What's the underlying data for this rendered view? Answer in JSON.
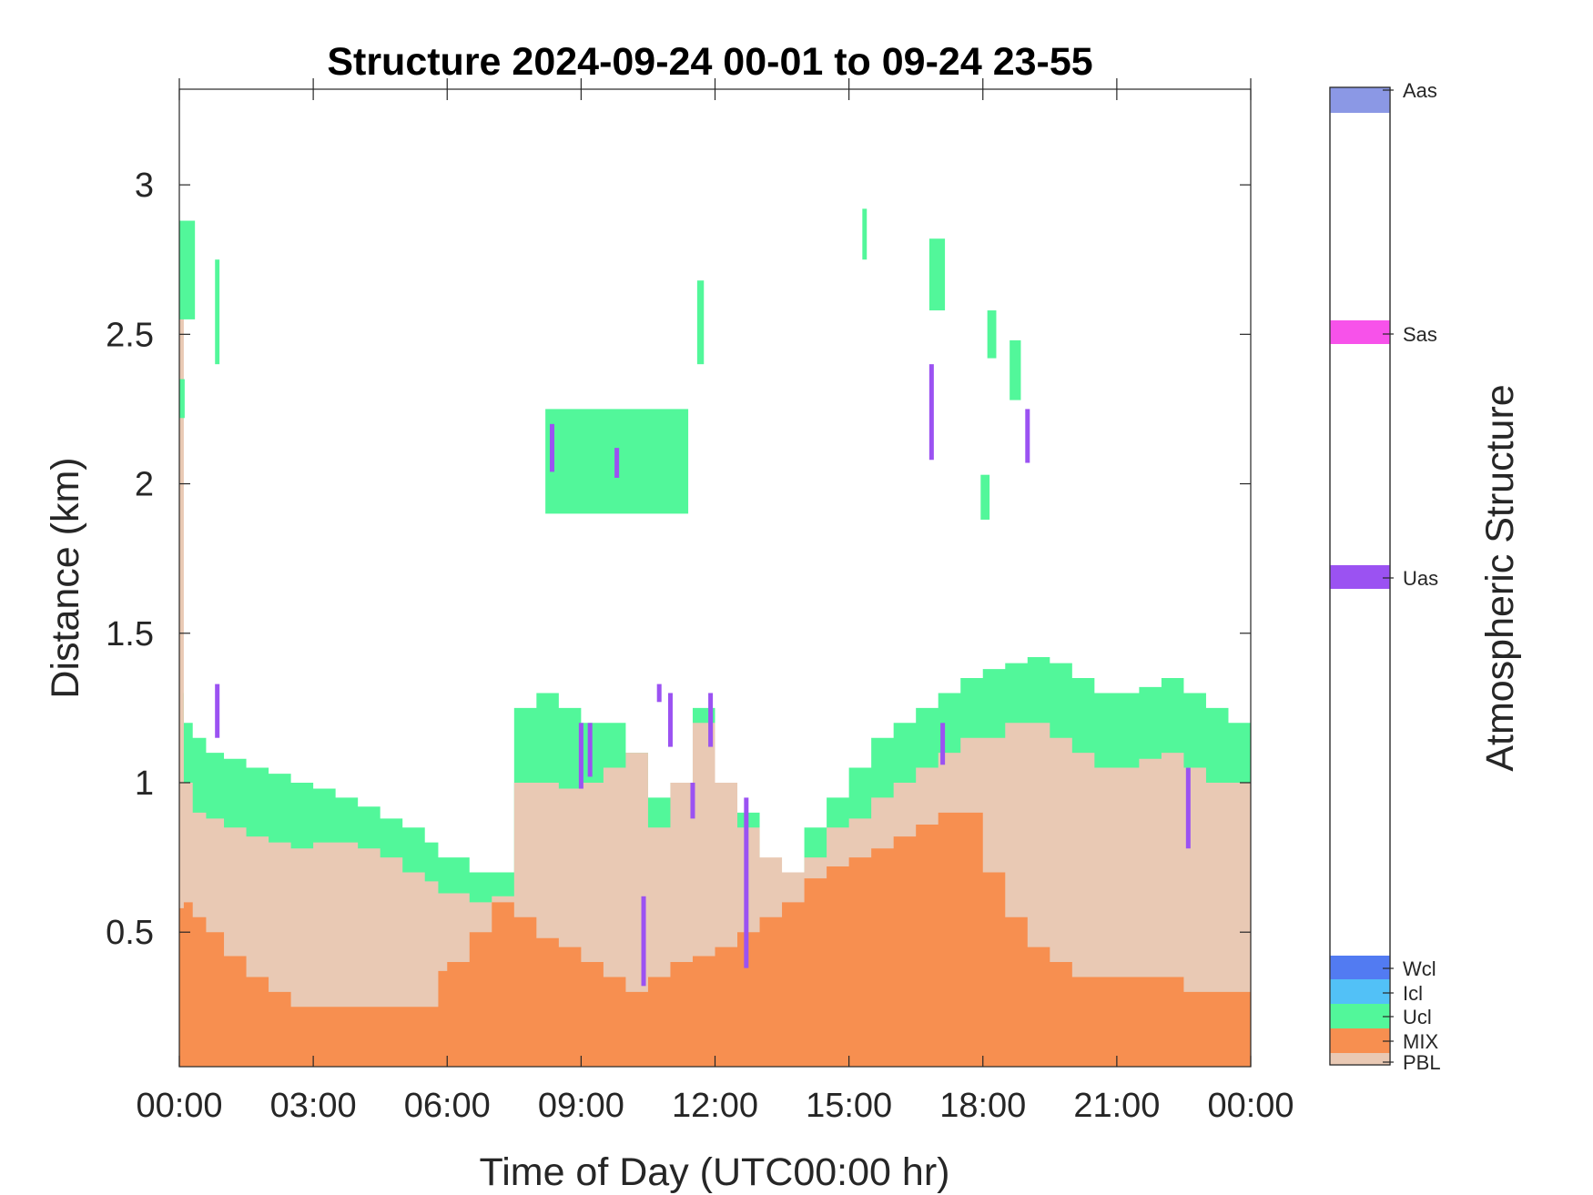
{
  "chart_data": {
    "type": "heatmap",
    "title": "Structure 2024-09-24 00-01 to 09-24 23-55",
    "xlabel": "Time of Day (UTC00:00 hr)",
    "ylabel": "Distance (km)",
    "xlim": [
      0,
      24
    ],
    "ylim": [
      0.05,
      3.32
    ],
    "x_ticks": [
      {
        "value": 0,
        "label": "00:00"
      },
      {
        "value": 3,
        "label": "03:00"
      },
      {
        "value": 6,
        "label": "06:00"
      },
      {
        "value": 9,
        "label": "09:00"
      },
      {
        "value": 12,
        "label": "12:00"
      },
      {
        "value": 15,
        "label": "15:00"
      },
      {
        "value": 18,
        "label": "18:00"
      },
      {
        "value": 21,
        "label": "21:00"
      },
      {
        "value": 24,
        "label": "00:00"
      }
    ],
    "y_ticks": [
      {
        "value": 0.5,
        "label": "0.5"
      },
      {
        "value": 1,
        "label": "1"
      },
      {
        "value": 1.5,
        "label": "1.5"
      },
      {
        "value": 2,
        "label": "2"
      },
      {
        "value": 2.5,
        "label": "2.5"
      },
      {
        "value": 3,
        "label": "3"
      }
    ],
    "colorbar": {
      "label": "Atmospheric Structure",
      "categories": [
        {
          "name": "PBL",
          "color": "#e9c9b4"
        },
        {
          "name": "MIX",
          "color": "#f78f50"
        },
        {
          "name": "Ucl",
          "color": "#52f79a"
        },
        {
          "name": "Icl",
          "color": "#52c1f7"
        },
        {
          "name": "Wcl",
          "color": "#527bf2"
        },
        {
          "name": "Uas",
          "color": "#9b52f2"
        },
        {
          "name": "Sas",
          "color": "#f752ea"
        },
        {
          "name": "Aas",
          "color": "#8b98e5"
        }
      ]
    },
    "profile": {
      "hours": [
        0.0,
        0.1,
        0.3,
        0.6,
        1.0,
        1.5,
        2.0,
        2.5,
        3.0,
        3.5,
        4.0,
        4.5,
        5.0,
        5.5,
        5.8,
        6.0,
        6.5,
        7.0,
        7.5,
        8.0,
        8.5,
        9.0,
        9.5,
        10.0,
        10.5,
        11.0,
        11.5,
        12.0,
        12.5,
        13.0,
        13.5,
        14.0,
        14.5,
        15.0,
        15.5,
        16.0,
        16.5,
        17.0,
        17.5,
        18.0,
        18.5,
        19.0,
        19.5,
        20.0,
        20.5,
        21.0,
        21.5,
        22.0,
        22.5,
        23.0,
        23.5,
        24.0
      ],
      "mix_top": [
        0.58,
        0.6,
        0.55,
        0.5,
        0.42,
        0.35,
        0.3,
        0.25,
        0.25,
        0.25,
        0.25,
        0.25,
        0.25,
        0.25,
        0.37,
        0.4,
        0.5,
        0.6,
        0.55,
        0.48,
        0.45,
        0.4,
        0.35,
        0.3,
        0.35,
        0.4,
        0.42,
        0.45,
        0.5,
        0.55,
        0.6,
        0.68,
        0.72,
        0.75,
        0.78,
        0.82,
        0.86,
        0.9,
        0.9,
        0.7,
        0.55,
        0.45,
        0.4,
        0.35,
        0.35,
        0.35,
        0.35,
        0.35,
        0.3,
        0.3,
        0.3,
        0.2
      ],
      "pbl_top": [
        2.6,
        1.0,
        0.9,
        0.88,
        0.85,
        0.82,
        0.8,
        0.78,
        0.8,
        0.8,
        0.78,
        0.75,
        0.7,
        0.67,
        0.63,
        0.63,
        0.6,
        0.62,
        1.0,
        1.0,
        0.98,
        1.0,
        1.05,
        1.1,
        0.85,
        1.0,
        1.2,
        1.0,
        0.85,
        0.75,
        0.7,
        0.75,
        0.85,
        0.88,
        0.95,
        1.0,
        1.05,
        1.1,
        1.15,
        1.15,
        1.2,
        1.2,
        1.15,
        1.1,
        1.05,
        1.05,
        1.08,
        1.1,
        1.05,
        1.0,
        1.0,
        1.08
      ],
      "cloud_top": [
        1.3,
        1.2,
        1.15,
        1.1,
        1.08,
        1.05,
        1.03,
        1.0,
        0.98,
        0.95,
        0.92,
        0.88,
        0.85,
        0.8,
        0.75,
        0.75,
        0.7,
        0.7,
        1.25,
        1.3,
        1.25,
        1.2,
        1.2,
        1.1,
        0.95,
        1.0,
        1.25,
        1.0,
        0.9,
        0.65,
        0.6,
        0.85,
        0.95,
        1.05,
        1.15,
        1.2,
        1.25,
        1.3,
        1.35,
        1.38,
        1.4,
        1.42,
        1.4,
        1.35,
        1.3,
        1.3,
        1.32,
        1.35,
        1.3,
        1.25,
        1.2,
        1.28
      ]
    },
    "cloud_patches": [
      {
        "x": [
          0.0,
          0.35
        ],
        "y": [
          2.55,
          2.88
        ],
        "class": "Ucl"
      },
      {
        "x": [
          0.0,
          0.12
        ],
        "y": [
          2.22,
          2.35
        ],
        "class": "Ucl"
      },
      {
        "x": [
          0.8,
          0.9
        ],
        "y": [
          2.4,
          2.75
        ],
        "class": "Ucl"
      },
      {
        "x": [
          8.2,
          11.4
        ],
        "y": [
          1.9,
          2.25
        ],
        "class": "Ucl"
      },
      {
        "x": [
          11.6,
          11.75
        ],
        "y": [
          2.4,
          2.68
        ],
        "class": "Ucl"
      },
      {
        "x": [
          15.3,
          15.4
        ],
        "y": [
          2.75,
          2.92
        ],
        "class": "Ucl"
      },
      {
        "x": [
          16.8,
          17.15
        ],
        "y": [
          2.58,
          2.82
        ],
        "class": "Ucl"
      },
      {
        "x": [
          18.1,
          18.3
        ],
        "y": [
          2.42,
          2.58
        ],
        "class": "Ucl"
      },
      {
        "x": [
          18.6,
          18.85
        ],
        "y": [
          2.28,
          2.48
        ],
        "class": "Ucl"
      },
      {
        "x": [
          17.95,
          18.15
        ],
        "y": [
          1.88,
          2.03
        ],
        "class": "Ucl"
      }
    ],
    "aerosol_marks": [
      {
        "x": 0.85,
        "y": [
          1.15,
          1.33
        ],
        "class": "Uas"
      },
      {
        "x": 8.35,
        "y": [
          2.04,
          2.2
        ],
        "class": "Uas"
      },
      {
        "x": 9.0,
        "y": [
          0.98,
          1.2
        ],
        "class": "Uas"
      },
      {
        "x": 9.2,
        "y": [
          1.02,
          1.2
        ],
        "class": "Uas"
      },
      {
        "x": 9.8,
        "y": [
          2.02,
          2.12
        ],
        "class": "Uas"
      },
      {
        "x": 10.4,
        "y": [
          0.32,
          0.62
        ],
        "class": "Uas"
      },
      {
        "x": 10.75,
        "y": [
          1.27,
          1.33
        ],
        "class": "Uas"
      },
      {
        "x": 11.0,
        "y": [
          1.12,
          1.3
        ],
        "class": "Uas"
      },
      {
        "x": 11.5,
        "y": [
          0.88,
          1.0
        ],
        "class": "Uas"
      },
      {
        "x": 11.9,
        "y": [
          1.12,
          1.3
        ],
        "class": "Uas"
      },
      {
        "x": 12.7,
        "y": [
          0.38,
          0.95
        ],
        "class": "Uas"
      },
      {
        "x": 16.85,
        "y": [
          2.08,
          2.4
        ],
        "class": "Uas"
      },
      {
        "x": 17.1,
        "y": [
          1.06,
          1.2
        ],
        "class": "Uas"
      },
      {
        "x": 19.0,
        "y": [
          2.07,
          2.25
        ],
        "class": "Uas"
      },
      {
        "x": 22.6,
        "y": [
          0.78,
          1.05
        ],
        "class": "Uas"
      }
    ]
  }
}
